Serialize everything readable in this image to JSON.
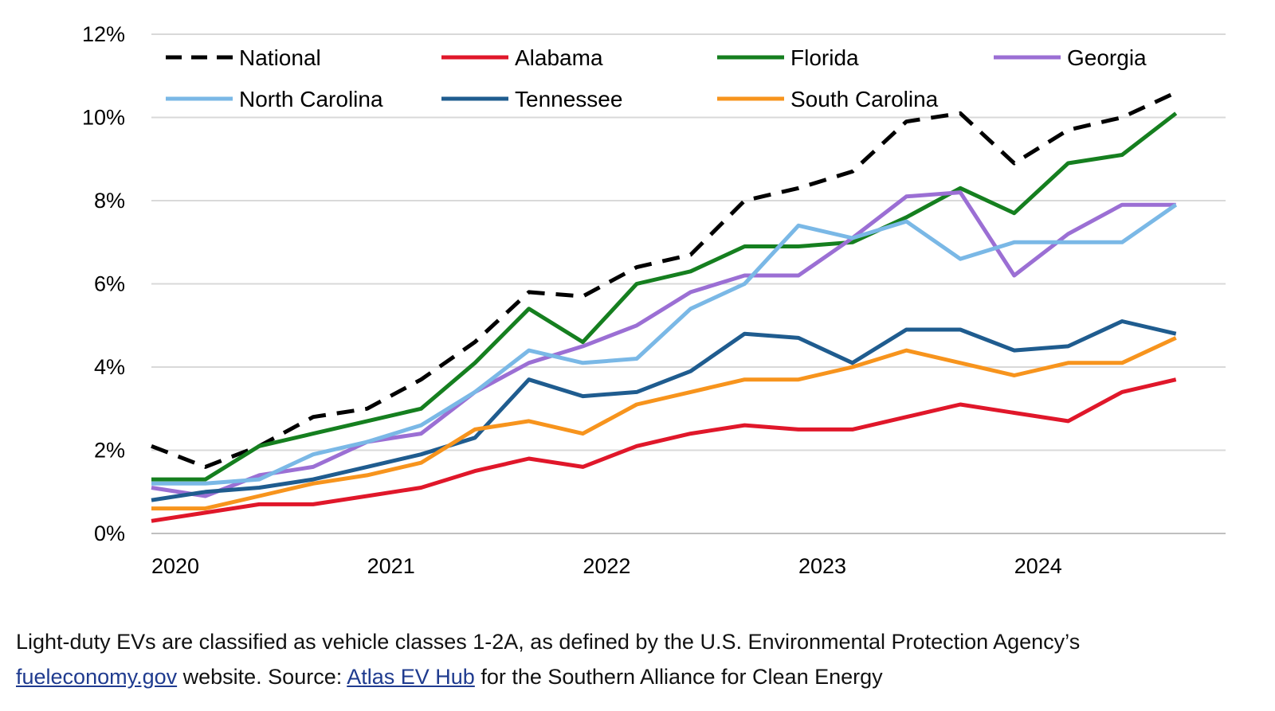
{
  "chart_data": {
    "type": "line",
    "title": "",
    "xlabel": "",
    "ylabel": "",
    "ylim": [
      0,
      12
    ],
    "yticks": [
      0,
      2,
      4,
      6,
      8,
      10,
      12
    ],
    "ytick_labels": [
      "0%",
      "2%",
      "4%",
      "6%",
      "8%",
      "10%",
      "12%"
    ],
    "xlim": [
      2020.0,
      2024.98
    ],
    "xticks": [
      2020,
      2021,
      2022,
      2023,
      2024
    ],
    "xtick_labels": [
      "2020",
      "2021",
      "2022",
      "2023",
      "2024"
    ],
    "x": [
      2020.0,
      2020.25,
      2020.5,
      2020.75,
      2021.0,
      2021.25,
      2021.5,
      2021.75,
      2022.0,
      2022.25,
      2022.5,
      2022.75,
      2023.0,
      2023.25,
      2023.5,
      2023.75,
      2024.0,
      2024.25,
      2024.5,
      2024.75
    ],
    "grid": "horizontal",
    "legend_position": "top",
    "series": [
      {
        "name": "National",
        "color": "#000000",
        "dash": true,
        "values": [
          2.1,
          1.6,
          2.1,
          2.8,
          3.0,
          3.7,
          4.6,
          5.8,
          5.7,
          6.4,
          6.7,
          8.0,
          8.3,
          8.7,
          9.9,
          10.1,
          8.9,
          9.7,
          10.0,
          10.6
        ]
      },
      {
        "name": "Alabama",
        "color": "#e0172a",
        "dash": false,
        "values": [
          0.3,
          0.5,
          0.7,
          0.7,
          0.9,
          1.1,
          1.5,
          1.8,
          1.6,
          2.1,
          2.4,
          2.6,
          2.5,
          2.5,
          2.8,
          3.1,
          2.9,
          2.7,
          3.4,
          3.7
        ]
      },
      {
        "name": "Florida",
        "color": "#157f1f",
        "dash": false,
        "values": [
          1.3,
          1.3,
          2.1,
          2.4,
          2.7,
          3.0,
          4.1,
          5.4,
          4.6,
          6.0,
          6.3,
          6.9,
          6.9,
          7.0,
          7.6,
          8.3,
          7.7,
          8.9,
          9.1,
          10.1
        ]
      },
      {
        "name": "Georgia",
        "color": "#9b6fd4",
        "dash": false,
        "values": [
          1.1,
          0.9,
          1.4,
          1.6,
          2.2,
          2.4,
          3.4,
          4.1,
          4.5,
          5.0,
          5.8,
          6.2,
          6.2,
          7.1,
          8.1,
          8.2,
          6.2,
          7.2,
          7.9,
          7.9
        ]
      },
      {
        "name": "North Carolina",
        "color": "#7ab8e6",
        "dash": false,
        "values": [
          1.2,
          1.2,
          1.3,
          1.9,
          2.2,
          2.6,
          3.4,
          4.4,
          4.1,
          4.2,
          5.4,
          6.0,
          7.4,
          7.1,
          7.5,
          6.6,
          7.0,
          7.0,
          7.0,
          7.9
        ]
      },
      {
        "name": "Tennessee",
        "color": "#1f5c8f",
        "dash": false,
        "values": [
          0.8,
          1.0,
          1.1,
          1.3,
          1.6,
          1.9,
          2.3,
          3.7,
          3.3,
          3.4,
          3.9,
          4.8,
          4.7,
          4.1,
          4.9,
          4.9,
          4.4,
          4.5,
          5.1,
          4.8
        ]
      },
      {
        "name": "South Carolina",
        "color": "#f7941d",
        "dash": false,
        "values": [
          0.6,
          0.6,
          0.9,
          1.2,
          1.4,
          1.7,
          2.5,
          2.7,
          2.4,
          3.1,
          3.4,
          3.7,
          3.7,
          4.0,
          4.4,
          4.1,
          3.8,
          4.1,
          4.1,
          4.7
        ]
      }
    ]
  },
  "footnote": {
    "line1": "Light-duty EVs are classified as vehicle classes 1-2A, as defined by the U.S. Environmental Protection Agency’s",
    "link1": "fueleconomy.gov",
    "text2": " website. Source: ",
    "link2": "Atlas EV Hub",
    "text3": " for the Southern Alliance for Clean Energy"
  }
}
